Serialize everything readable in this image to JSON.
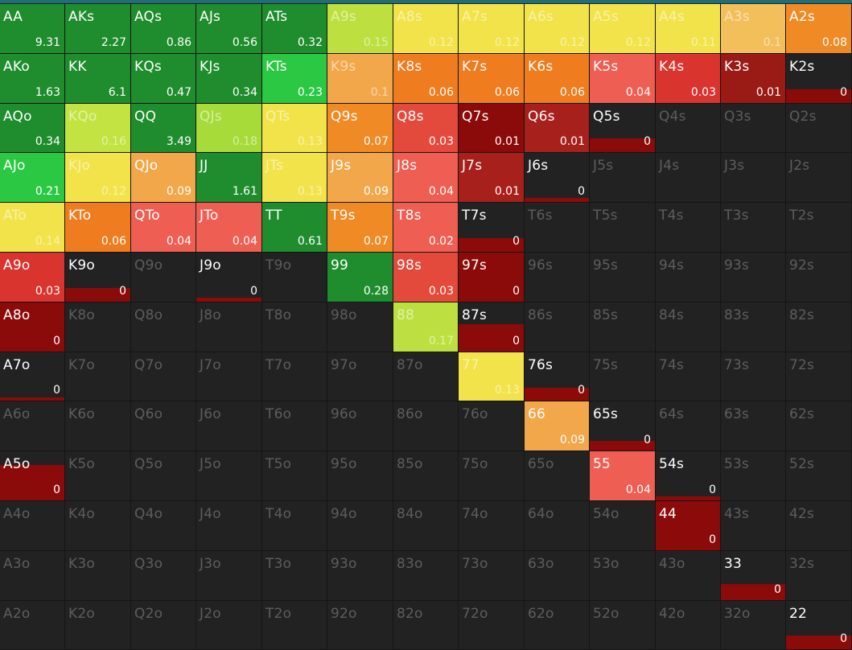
{
  "grid": {
    "rows": [
      [
        [
          "AA",
          "9.31"
        ],
        [
          "AKs",
          "2.27"
        ],
        [
          "AQs",
          "0.86"
        ],
        [
          "AJs",
          "0.56"
        ],
        [
          "ATs",
          "0.32"
        ],
        [
          "A9s",
          "0.15"
        ],
        [
          "A8s",
          "0.12"
        ],
        [
          "A7s",
          "0.12"
        ],
        [
          "A6s",
          "0.12"
        ],
        [
          "A5s",
          "0.12"
        ],
        [
          "A4s",
          "0.11"
        ],
        [
          "A3s",
          "0.1"
        ],
        [
          "A2s",
          "0.08"
        ]
      ],
      [
        [
          "AKo",
          "1.63"
        ],
        [
          "KK",
          "6.1"
        ],
        [
          "KQs",
          "0.47"
        ],
        [
          "KJs",
          "0.34"
        ],
        [
          "KTs",
          "0.23"
        ],
        [
          "K9s",
          "0.1"
        ],
        [
          "K8s",
          "0.06"
        ],
        [
          "K7s",
          "0.06"
        ],
        [
          "K6s",
          "0.06"
        ],
        [
          "K5s",
          "0.04"
        ],
        [
          "K4s",
          "0.03"
        ],
        [
          "K3s",
          "0.01"
        ],
        [
          "K2s",
          "0"
        ]
      ],
      [
        [
          "AQo",
          "0.34"
        ],
        [
          "KQo",
          "0.16"
        ],
        [
          "QQ",
          "3.49"
        ],
        [
          "QJs",
          "0.18"
        ],
        [
          "QTs",
          "0.13"
        ],
        [
          "Q9s",
          "0.07"
        ],
        [
          "Q8s",
          "0.03"
        ],
        [
          "Q7s",
          "0.01"
        ],
        [
          "Q6s",
          "0.01"
        ],
        [
          "Q5s",
          "0"
        ],
        [
          "Q4s",
          ""
        ],
        [
          "Q3s",
          ""
        ],
        [
          "Q2s",
          ""
        ]
      ],
      [
        [
          "AJo",
          "0.21"
        ],
        [
          "KJo",
          "0.12"
        ],
        [
          "QJo",
          "0.09"
        ],
        [
          "JJ",
          "1.61"
        ],
        [
          "JTs",
          "0.13"
        ],
        [
          "J9s",
          "0.09"
        ],
        [
          "J8s",
          "0.04"
        ],
        [
          "J7s",
          "0.01"
        ],
        [
          "J6s",
          "0"
        ],
        [
          "J5s",
          ""
        ],
        [
          "J4s",
          ""
        ],
        [
          "J3s",
          ""
        ],
        [
          "J2s",
          ""
        ]
      ],
      [
        [
          "ATo",
          "0.14"
        ],
        [
          "KTo",
          "0.06"
        ],
        [
          "QTo",
          "0.04"
        ],
        [
          "JTo",
          "0.04"
        ],
        [
          "TT",
          "0.61"
        ],
        [
          "T9s",
          "0.07"
        ],
        [
          "T8s",
          "0.02"
        ],
        [
          "T7s",
          "0"
        ],
        [
          "T6s",
          ""
        ],
        [
          "T5s",
          ""
        ],
        [
          "T4s",
          ""
        ],
        [
          "T3s",
          ""
        ],
        [
          "T2s",
          ""
        ]
      ],
      [
        [
          "A9o",
          "0.03"
        ],
        [
          "K9o",
          "0"
        ],
        [
          "Q9o",
          ""
        ],
        [
          "J9o",
          "0"
        ],
        [
          "T9o",
          ""
        ],
        [
          "99",
          "0.28"
        ],
        [
          "98s",
          "0.03"
        ],
        [
          "97s",
          "0"
        ],
        [
          "96s",
          ""
        ],
        [
          "95s",
          ""
        ],
        [
          "94s",
          ""
        ],
        [
          "93s",
          ""
        ],
        [
          "92s",
          ""
        ]
      ],
      [
        [
          "A8o",
          "0"
        ],
        [
          "K8o",
          ""
        ],
        [
          "Q8o",
          ""
        ],
        [
          "J8o",
          ""
        ],
        [
          "T8o",
          ""
        ],
        [
          "98o",
          ""
        ],
        [
          "88",
          "0.17"
        ],
        [
          "87s",
          "0"
        ],
        [
          "86s",
          ""
        ],
        [
          "85s",
          ""
        ],
        [
          "84s",
          ""
        ],
        [
          "83s",
          ""
        ],
        [
          "82s",
          ""
        ]
      ],
      [
        [
          "A7o",
          "0"
        ],
        [
          "K7o",
          ""
        ],
        [
          "Q7o",
          ""
        ],
        [
          "J7o",
          ""
        ],
        [
          "T7o",
          ""
        ],
        [
          "97o",
          ""
        ],
        [
          "87o",
          ""
        ],
        [
          "77",
          "0.13"
        ],
        [
          "76s",
          "0"
        ],
        [
          "75s",
          ""
        ],
        [
          "74s",
          ""
        ],
        [
          "73s",
          ""
        ],
        [
          "72s",
          ""
        ]
      ],
      [
        [
          "A6o",
          ""
        ],
        [
          "K6o",
          ""
        ],
        [
          "Q6o",
          ""
        ],
        [
          "J6o",
          ""
        ],
        [
          "T6o",
          ""
        ],
        [
          "96o",
          ""
        ],
        [
          "86o",
          ""
        ],
        [
          "76o",
          ""
        ],
        [
          "66",
          "0.09"
        ],
        [
          "65s",
          "0"
        ],
        [
          "64s",
          ""
        ],
        [
          "63s",
          ""
        ],
        [
          "62s",
          ""
        ]
      ],
      [
        [
          "A5o",
          "0"
        ],
        [
          "K5o",
          ""
        ],
        [
          "Q5o",
          ""
        ],
        [
          "J5o",
          ""
        ],
        [
          "T5o",
          ""
        ],
        [
          "95o",
          ""
        ],
        [
          "85o",
          ""
        ],
        [
          "75o",
          ""
        ],
        [
          "65o",
          ""
        ],
        [
          "55",
          "0.04"
        ],
        [
          "54s",
          "0"
        ],
        [
          "53s",
          ""
        ],
        [
          "52s",
          ""
        ]
      ],
      [
        [
          "A4o",
          ""
        ],
        [
          "K4o",
          ""
        ],
        [
          "Q4o",
          ""
        ],
        [
          "J4o",
          ""
        ],
        [
          "T4o",
          ""
        ],
        [
          "94o",
          ""
        ],
        [
          "84o",
          ""
        ],
        [
          "74o",
          ""
        ],
        [
          "64o",
          ""
        ],
        [
          "54o",
          ""
        ],
        [
          "44",
          "0"
        ],
        [
          "43s",
          ""
        ],
        [
          "42s",
          ""
        ]
      ],
      [
        [
          "A3o",
          ""
        ],
        [
          "K3o",
          ""
        ],
        [
          "Q3o",
          ""
        ],
        [
          "J3o",
          ""
        ],
        [
          "T3o",
          ""
        ],
        [
          "93o",
          ""
        ],
        [
          "83o",
          ""
        ],
        [
          "73o",
          ""
        ],
        [
          "63o",
          ""
        ],
        [
          "53o",
          ""
        ],
        [
          "43o",
          ""
        ],
        [
          "33",
          "0"
        ],
        [
          "32s",
          ""
        ]
      ],
      [
        [
          "A2o",
          ""
        ],
        [
          "K2o",
          ""
        ],
        [
          "Q2o",
          ""
        ],
        [
          "J2o",
          ""
        ],
        [
          "T2o",
          ""
        ],
        [
          "92o",
          ""
        ],
        [
          "82o",
          ""
        ],
        [
          "72o",
          ""
        ],
        [
          "62o",
          ""
        ],
        [
          "52o",
          ""
        ],
        [
          "42o",
          ""
        ],
        [
          "32o",
          ""
        ],
        [
          "22",
          "0"
        ]
      ]
    ],
    "colors": {
      "AA": "#1f8c2e",
      "AKs": "#1f8c2e",
      "AQs": "#1f8c2e",
      "AJs": "#1f8c2e",
      "ATs": "#1f8c2e",
      "A9s": "#bde040",
      "A8s": "#f2e34a",
      "A7s": "#f2e34a",
      "A6s": "#f2e34a",
      "A5s": "#f2e34a",
      "A4s": "#f2e34a",
      "A3s": "#f2bf5a",
      "A2s": "#f08a24",
      "AKo": "#1f8c2e",
      "KK": "#1f8c2e",
      "KQs": "#1f8c2e",
      "KJs": "#1f8c2e",
      "KTs": "#2bc844",
      "K9s": "#f2a74a",
      "K8s": "#ef7c1e",
      "K7s": "#ef7c1e",
      "K6s": "#ef7c1e",
      "K5s": "#ef5e52",
      "K4s": "#d9342e",
      "K3s": "#9a1a16",
      "K2s": "#8b0a0a",
      "AQo": "#1f8c2e",
      "KQo": "#c3e342",
      "QQ": "#1f8c2e",
      "QJs": "#a6db3a",
      "QTs": "#f2e34a",
      "Q9s": "#f08a24",
      "Q8s": "#e44a3c",
      "Q7s": "#8b0a0a",
      "Q6s": "#a8201c",
      "Q5s": "#8b0a0a",
      "AJo": "#2bc844",
      "KJo": "#f2e34a",
      "QJo": "#f2a74a",
      "JJ": "#1f8c2e",
      "JTs": "#f2e34a",
      "J9s": "#f2a74a",
      "J8s": "#ef5e52",
      "J7s": "#a8201c",
      "J6s": "#8b0a0a",
      "ATo": "#f2e34a",
      "KTo": "#ef7c1e",
      "QTo": "#ef5e52",
      "JTo": "#ef5e52",
      "TT": "#1f8c2e",
      "T9s": "#f08a24",
      "T8s": "#ef5e52",
      "T7s": "#8b0a0a",
      "A9o": "#d9342e",
      "K9o": "#8b0a0a",
      "J9o": "#8b0a0a",
      "99": "#1f8c2e",
      "98s": "#e44a3c",
      "97s": "#8b0a0a",
      "A8o": "#8b0a0a",
      "88": "#bde040",
      "87s": "#8b0a0a",
      "A7o": "#8b0a0a",
      "77": "#f2e34a",
      "76s": "#8b0a0a",
      "66": "#f2a74a",
      "65s": "#8b0a0a",
      "A5o": "#8b0a0a",
      "55": "#ef5e52",
      "54s": "#8b0a0a",
      "44": "#8b0a0a",
      "33": "#8b0a0a",
      "22": "#8b0a0a"
    },
    "fill_fraction": {
      "K2s": 0.28,
      "Q5s": 0.28,
      "J6s": 0.08,
      "T7s": 0.28,
      "K9o": 0.28,
      "J9o": 0.08,
      "97s": 1.0,
      "A8o": 1.0,
      "87s": 0.55,
      "A7o": 0.06,
      "76s": 0.26,
      "65s": 0.2,
      "A5o": 0.72,
      "54s": 0.08,
      "44": 1.0,
      "33": 0.32,
      "22": 0.28
    },
    "light_cells": [
      "A9s",
      "A8s",
      "A7s",
      "A6s",
      "A5s",
      "A4s",
      "A3s",
      "K9s",
      "KQo",
      "QJs",
      "QTs",
      "KJo",
      "JTs",
      "ATo",
      "88",
      "77"
    ]
  },
  "accent_line_color": "#1f6e78"
}
